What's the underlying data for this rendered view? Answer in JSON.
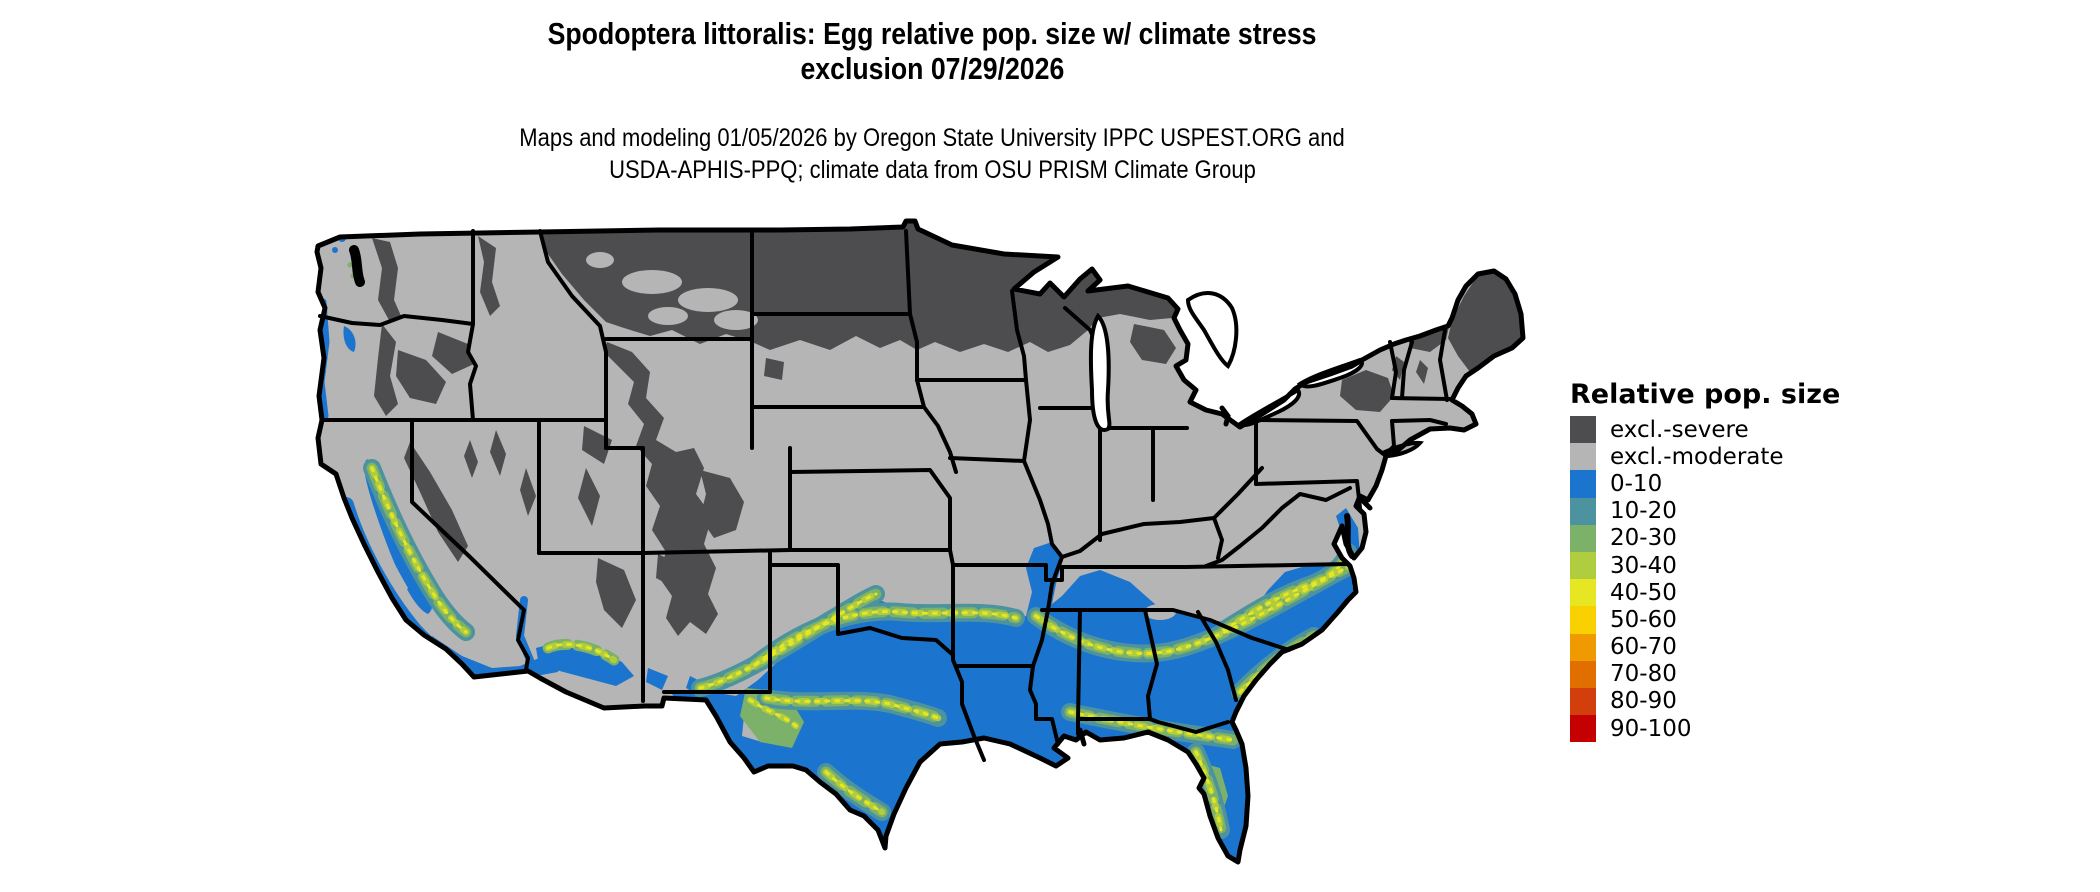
{
  "title": {
    "line1": "Spodoptera littoralis: Egg relative pop. size w/ climate stress",
    "line2": "exclusion 07/29/2026"
  },
  "subtitle": {
    "line1": "Maps and modeling 01/05/2026 by Oregon State University IPPC USPEST.ORG and",
    "line2": "USDA-APHIS-PPQ; climate data from OSU PRISM Climate Group"
  },
  "legend": {
    "title": "Relative pop. size",
    "items": [
      {
        "key": "severe",
        "label": "excl.-severe",
        "color": "#4d4d4f"
      },
      {
        "key": "moderate",
        "label": "excl.-moderate",
        "color": "#b5b5b5"
      },
      {
        "key": "v0",
        "label": "0-10",
        "color": "#1b74cd"
      },
      {
        "key": "v10",
        "label": "10-20",
        "color": "#4d929f"
      },
      {
        "key": "v20",
        "label": "20-30",
        "color": "#7bb168"
      },
      {
        "key": "v30",
        "label": "30-40",
        "color": "#b0cc3f"
      },
      {
        "key": "v40",
        "label": "40-50",
        "color": "#e7e622"
      },
      {
        "key": "v50",
        "label": "50-60",
        "color": "#f9d100"
      },
      {
        "key": "v60",
        "label": "60-70",
        "color": "#ef9a00"
      },
      {
        "key": "v70",
        "label": "70-80",
        "color": "#e16f00"
      },
      {
        "key": "v80",
        "label": "80-90",
        "color": "#d33f0c"
      },
      {
        "key": "v90",
        "label": "90-100",
        "color": "#c40000"
      }
    ]
  },
  "map": {
    "region": "Contiguous United States",
    "kind": "raster choropleth of relative population size categories with state borders",
    "border_color": "#000000",
    "water_color": "#ffffff",
    "visible_distribution": {
      "excl_severe": "northern Rockies, northern plains (ND, northern MN/WI, upper MI), WY-CO mountains, Sierra/Cascades, Adirondacks, northern New England",
      "excl_moderate": "most of the central and northeastern US, Great Basin, Pacific Northwest lowlands",
      "pop_0_10": "southern California and valleys, southern Arizona, southern and eastern Texas, Gulf Coast states, Southeast, Florida, coastal Carolinas and Virginia",
      "pop_10_50_speckle": "central Texas, interior Deep South band, central Florida, California Central Valley fringes"
    }
  }
}
